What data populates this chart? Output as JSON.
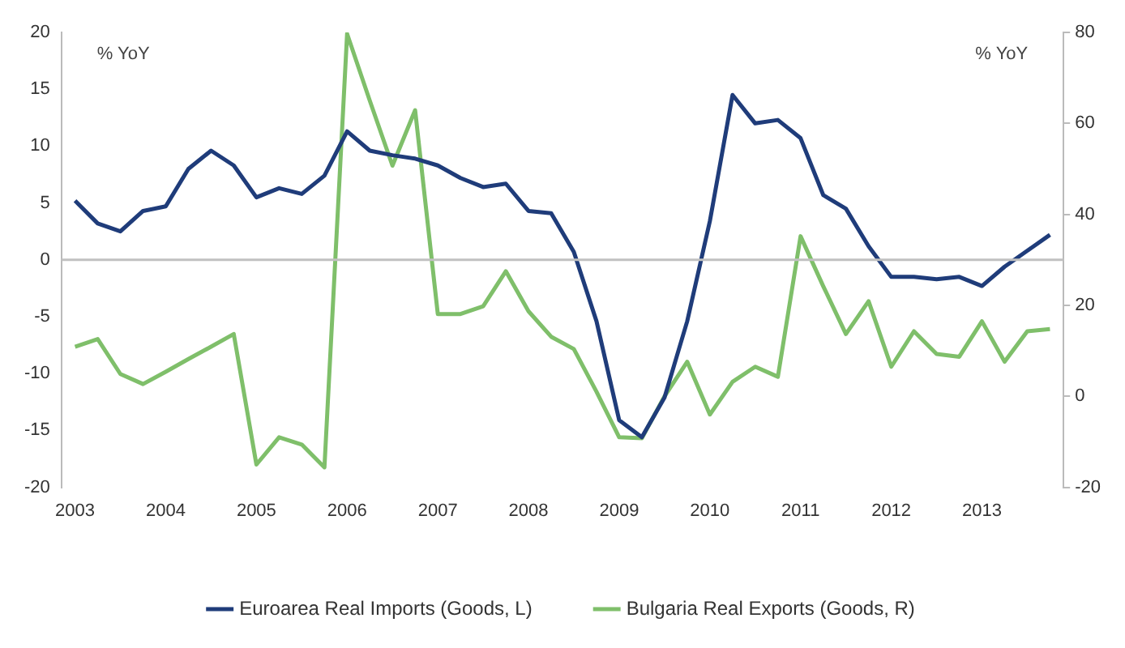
{
  "chart_data": {
    "type": "line",
    "ylabel": "% YoY",
    "y2label": "% YoY",
    "x": [
      2003,
      2003.25,
      2003.5,
      2003.75,
      2004,
      2004.25,
      2004.5,
      2004.75,
      2005,
      2005.25,
      2005.5,
      2005.75,
      2006,
      2006.25,
      2006.5,
      2006.75,
      2007,
      2007.25,
      2007.5,
      2007.75,
      2008,
      2008.25,
      2008.5,
      2008.75,
      2009,
      2009.25,
      2009.5,
      2009.75,
      2010,
      2010.25,
      2010.5,
      2010.75,
      2011,
      2011.25,
      2011.5,
      2011.75,
      2012,
      2012.25,
      2012.5,
      2012.75,
      2013,
      2013.25,
      2013.5,
      2013.75
    ],
    "series": [
      {
        "name": "Euroarea Real Imports (Goods, L)",
        "color": "#1f3c7a",
        "axis": "y",
        "values": [
          5.2,
          3.2,
          2.5,
          4.3,
          4.7,
          8.0,
          9.6,
          8.3,
          5.5,
          6.3,
          5.8,
          7.4,
          11.3,
          9.6,
          9.2,
          8.9,
          8.3,
          7.2,
          6.4,
          6.7,
          4.3,
          4.1,
          0.7,
          -5.4,
          -14.1,
          -15.6,
          -12.1,
          -5.4,
          3.4,
          14.5,
          12.0,
          12.3,
          10.7,
          5.7,
          4.5,
          1.2,
          -1.5,
          -1.5,
          -1.7,
          -1.5,
          -2.3,
          -0.6,
          0.8,
          2.2
        ]
      },
      {
        "name": "Bulgaria Real Exports (Goods, R)",
        "color": "#7fbf6a",
        "axis": "y2",
        "values": [
          10.9,
          12.6,
          4.9,
          2.7,
          5.4,
          8.2,
          10.9,
          13.7,
          -15,
          -9,
          -10.6,
          -15.6,
          79.7,
          65,
          50.7,
          62.9,
          18.1,
          18.1,
          19.8,
          27.5,
          18.7,
          13.1,
          10.4,
          1.0,
          -9,
          -9.2,
          0,
          7.6,
          -4,
          3.2,
          6.5,
          4.3,
          35.2,
          24.2,
          13.7,
          20.9,
          6.5,
          14.3,
          9.3,
          8.7,
          16.5,
          7.6,
          14.3,
          14.8
        ]
      }
    ],
    "xlim": [
      2002.85,
      2013.9
    ],
    "xticks": [
      2003,
      2004,
      2005,
      2006,
      2007,
      2008,
      2009,
      2010,
      2011,
      2012,
      2013
    ],
    "ylim": [
      -20,
      20
    ],
    "yticks": [
      -20,
      -15,
      -10,
      -5,
      0,
      5,
      10,
      15,
      20
    ],
    "y2lim": [
      -20,
      80
    ],
    "y2ticks": [
      -20,
      0,
      20,
      40,
      60,
      80
    ],
    "ref_lines": [
      {
        "axis": "y",
        "value": 0,
        "color": "#c0c0c0"
      }
    ],
    "grid": false,
    "legend": "bottom",
    "marker": "none",
    "line_style": "solid"
  }
}
